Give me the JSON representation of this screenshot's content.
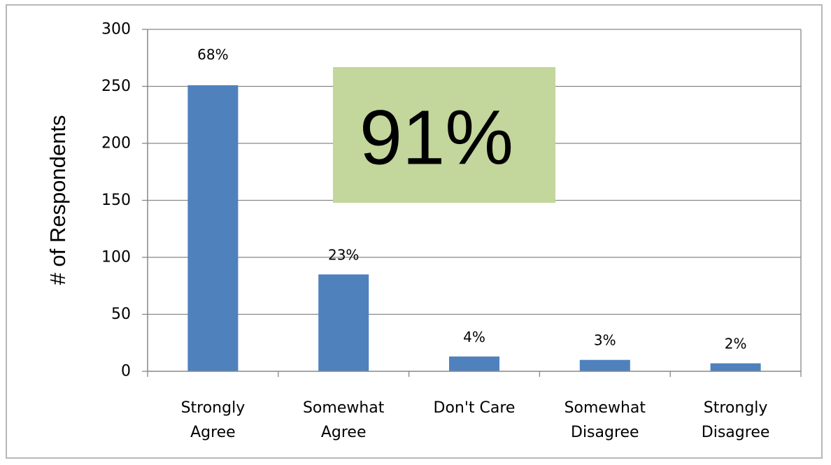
{
  "chart_data": {
    "type": "bar",
    "title": "",
    "xlabel": "",
    "ylabel": "# of Respondents",
    "ylim": [
      0,
      300
    ],
    "yticks": [
      0,
      50,
      100,
      150,
      200,
      250,
      300
    ],
    "grid": true,
    "categories": [
      [
        "Strongly",
        "Agree"
      ],
      [
        "Somewhat",
        "Agree"
      ],
      [
        "Don't Care"
      ],
      [
        "Somewhat",
        "Disagree"
      ],
      [
        "Strongly",
        "Disagree"
      ]
    ],
    "values": [
      251,
      85,
      13,
      10,
      7
    ],
    "data_labels": [
      "68%",
      "23%",
      "4%",
      "3%",
      "2%"
    ],
    "bar_color": "#4f81bd",
    "callout": {
      "text": "91%",
      "background": "#c3d69b"
    }
  }
}
